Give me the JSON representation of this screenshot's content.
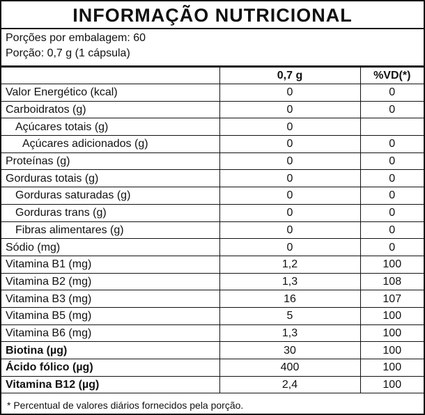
{
  "title": "INFORMAÇÃO NUTRICIONAL",
  "serving": [
    "Porções por embalagem: 60",
    "Porção: 0,7 g (1 cápsula)"
  ],
  "table": {
    "header": [
      "0,7 g",
      "%VD(*)"
    ],
    "rows": [
      [
        "Valor Energético (kcal)",
        "0",
        "0"
      ],
      [
        "Carboidratos (g)",
        "0",
        "0"
      ],
      [
        "Açúcares totais (g)",
        "0",
        null
      ],
      [
        "Açúcares adicionados (g)",
        "0",
        "0"
      ],
      [
        "Proteínas (g)",
        "0",
        "0"
      ],
      [
        "Gorduras totais (g)",
        "0",
        "0"
      ],
      [
        "Gorduras saturadas (g)",
        "0",
        "0"
      ],
      [
        "Gorduras trans (g)",
        "0",
        "0"
      ],
      [
        "Fibras alimentares (g)",
        "0",
        "0"
      ],
      [
        "Sódio (mg)",
        "0",
        "0"
      ],
      [
        "Vitamina B1 (mg)",
        "1,2",
        "100"
      ],
      [
        "Vitamina B2 (mg)",
        "1,3",
        "108"
      ],
      [
        "Vitamina B3 (mg)",
        "16",
        "107"
      ],
      [
        "Vitamina B5 (mg)",
        "5",
        "100"
      ],
      [
        "Vitamina B6 (mg)",
        "1,3",
        "100"
      ],
      [
        "Biotina (µg)",
        "30",
        "100"
      ],
      [
        "Ácido fólico (µg)",
        "400",
        "100"
      ],
      [
        "Vitamina B12 (µg)",
        "2,4",
        "100"
      ]
    ]
  },
  "footnote": "* Percentual de valores diários fornecidos pela porção."
}
